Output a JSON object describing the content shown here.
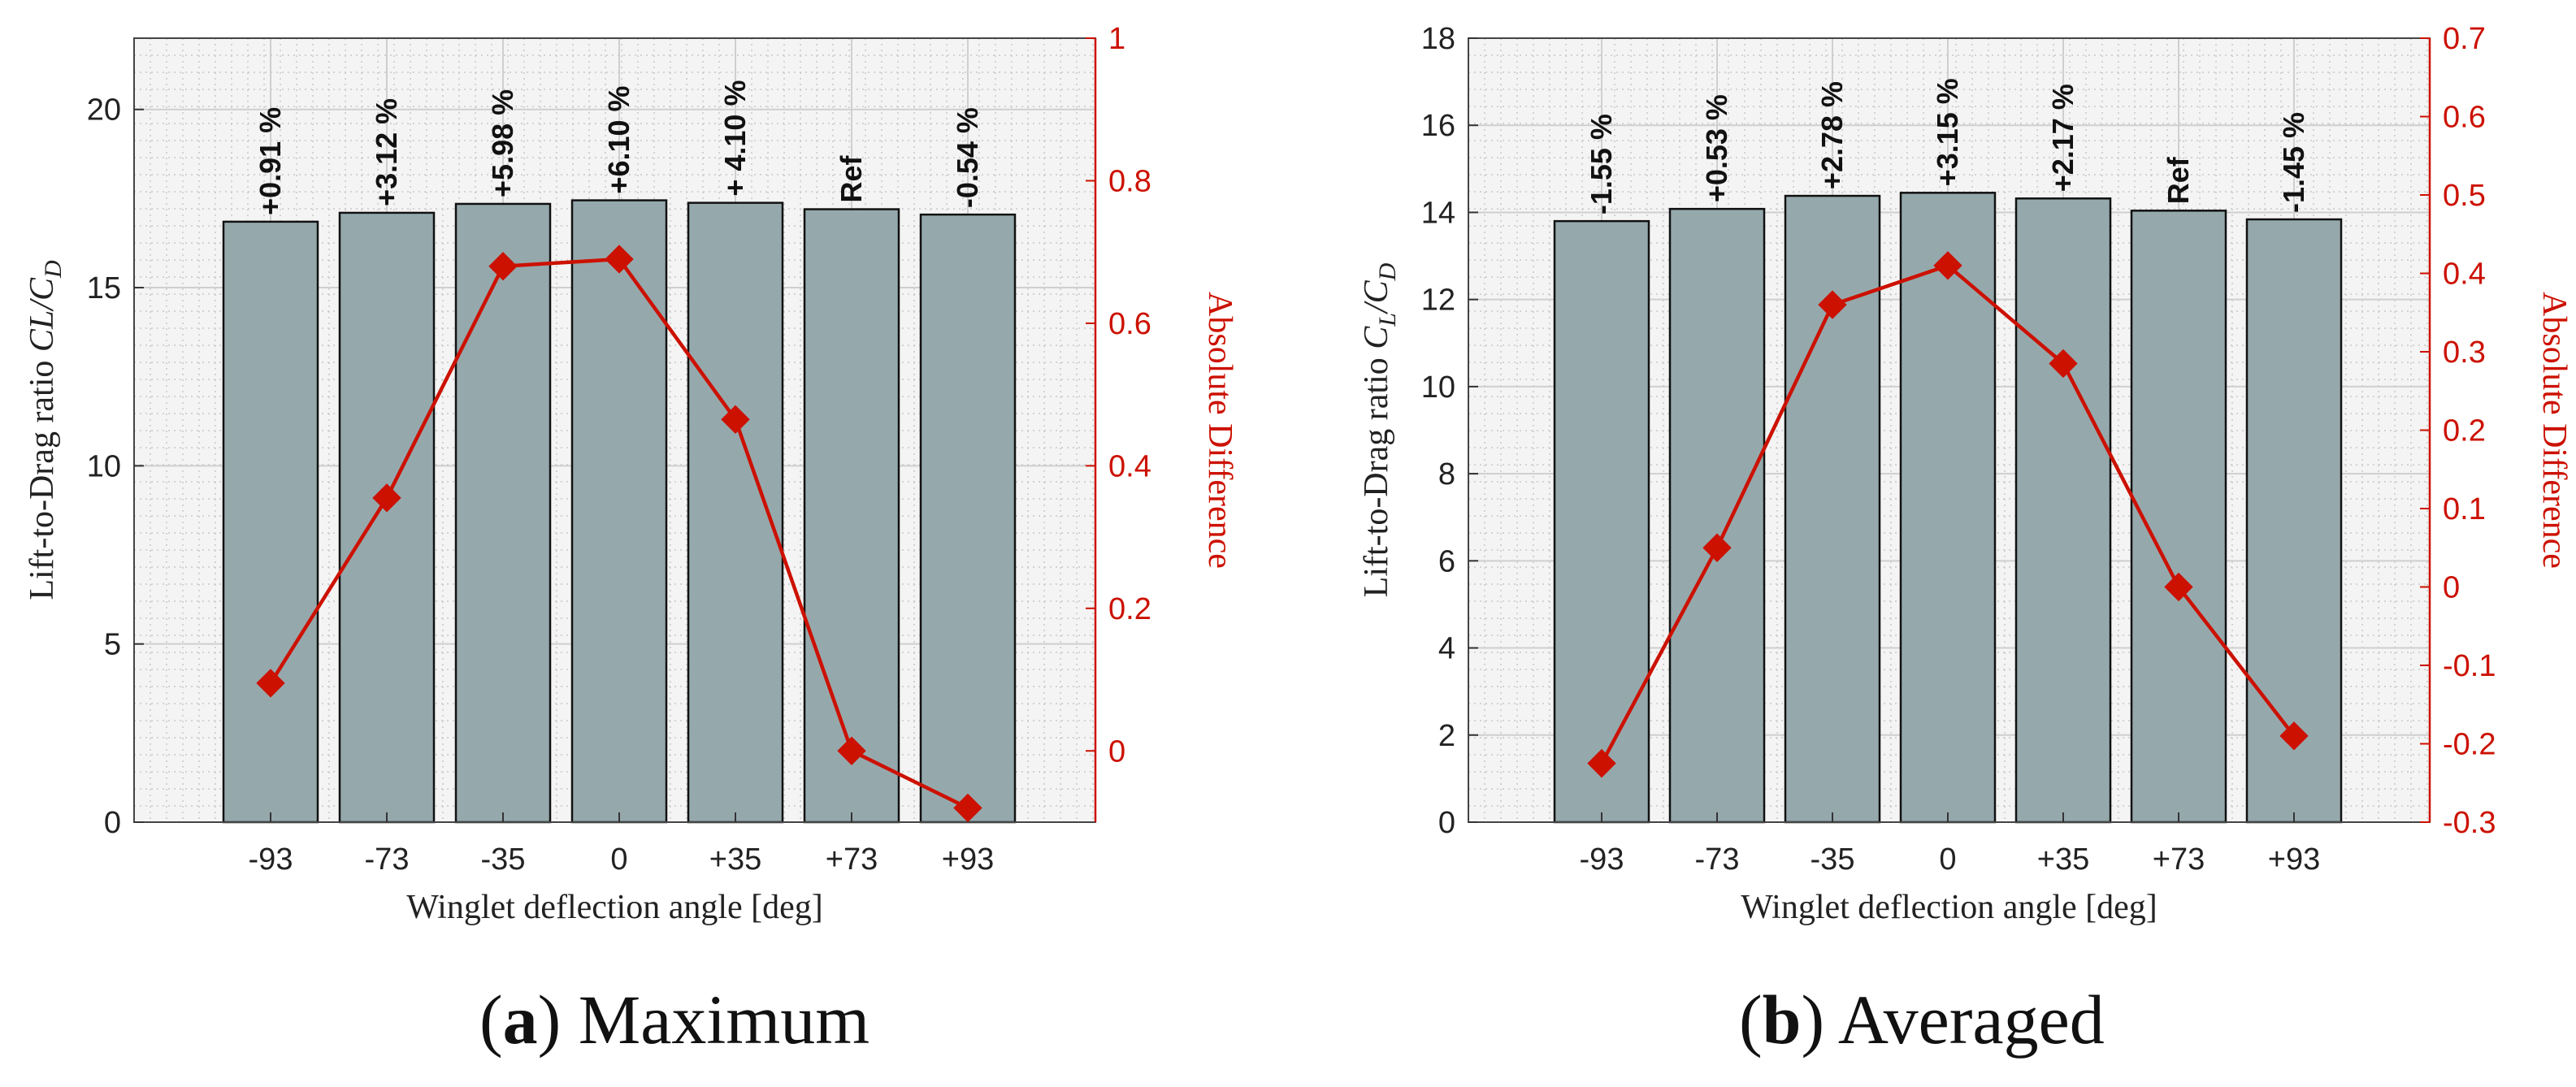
{
  "chart_data": [
    {
      "type": "bar",
      "panel": "a",
      "caption_letter": "a",
      "caption_text": "Maximum",
      "categories": [
        "-93",
        "-73",
        "-35",
        "0",
        "+35",
        "+73",
        "+93"
      ],
      "values": [
        16.85,
        17.1,
        17.35,
        17.45,
        17.38,
        17.2,
        17.05
      ],
      "bar_labels": [
        "+0.91 %",
        "+3.12 %",
        "+5.98 %",
        "+6.10 %",
        "+ 4.10 %",
        "Ref",
        "-0.54 %"
      ],
      "xlabel": "Winglet deflection angle [deg]",
      "ylabel_prefix": "Lift-to-Drag ratio ",
      "ylabel_math_main": "CL/C",
      "ylabel_math_sub": "D",
      "ylim": [
        0,
        22
      ],
      "yticks": [
        0,
        5,
        10,
        15,
        20
      ],
      "bar_color": "#95a9ad",
      "secondary": {
        "type": "line",
        "name": "Absolute Difference",
        "ylabel": "Absolute Difference",
        "values": [
          0.095,
          0.355,
          0.68,
          0.69,
          0.465,
          0.0,
          -0.08
        ],
        "ylim": [
          -0.1,
          1.0
        ],
        "yticks": [
          0,
          0.2,
          0.4,
          0.6,
          0.8,
          1
        ],
        "ytick_labels": [
          "0",
          "0.2",
          "0.4",
          "0.6",
          "0.8",
          "1"
        ],
        "color": "#cc1100"
      },
      "grid": true
    },
    {
      "type": "bar",
      "panel": "b",
      "caption_letter": "b",
      "caption_text": "Averaged",
      "categories": [
        "-93",
        "-73",
        "-35",
        "0",
        "+35",
        "+73",
        "+93"
      ],
      "values": [
        13.8,
        14.08,
        14.38,
        14.45,
        14.32,
        14.04,
        13.84
      ],
      "bar_labels": [
        "-1.55 %",
        "+0.53 %",
        "+2.78 %",
        "+3.15 %",
        "+2.17 %",
        "Ref",
        "-1.45 %"
      ],
      "xlabel": "Winglet deflection angle [deg]",
      "ylabel_prefix": "Lift-to-Drag ratio ",
      "ylabel_math_main": "C",
      "ylabel_math_sub1": "L",
      "ylabel_math_mid": "/C",
      "ylabel_math_sub": "D",
      "ylim": [
        0,
        18
      ],
      "yticks": [
        0,
        2,
        4,
        6,
        8,
        10,
        12,
        14,
        16,
        18
      ],
      "bar_color": "#95a9ad",
      "secondary": {
        "type": "line",
        "name": "Absolute Difference",
        "ylabel": "Absolute Difference",
        "values": [
          -0.225,
          0.05,
          0.36,
          0.41,
          0.285,
          0.0,
          -0.19
        ],
        "ylim": [
          -0.3,
          0.7
        ],
        "yticks": [
          -0.3,
          -0.2,
          -0.1,
          0,
          0.1,
          0.2,
          0.3,
          0.4,
          0.5,
          0.6,
          0.7
        ],
        "ytick_labels": [
          "-0.3",
          "-0.2",
          "-0.1",
          "0",
          "0.1",
          "0.2",
          "0.3",
          "0.4",
          "0.5",
          "0.6",
          "0.7"
        ],
        "color": "#cc1100"
      },
      "grid": true
    }
  ]
}
